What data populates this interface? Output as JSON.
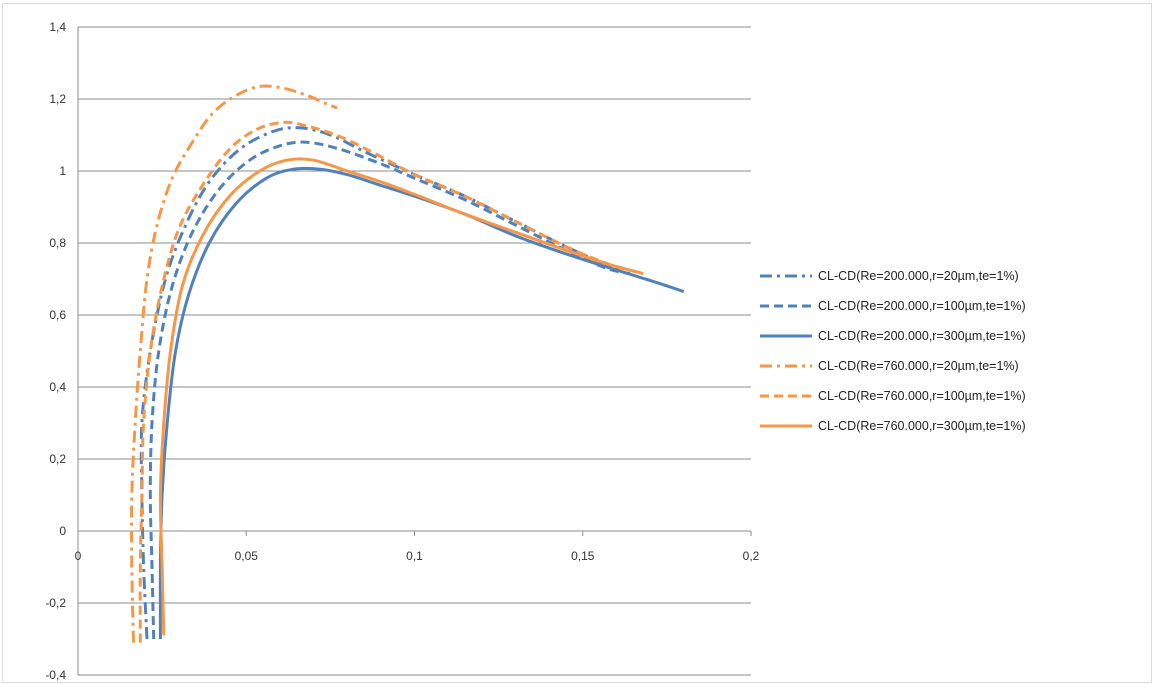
{
  "chart_data": {
    "type": "line",
    "title": "",
    "xlabel": "",
    "ylabel": "",
    "xlim": [
      0,
      0.2
    ],
    "ylim": [
      -0.4,
      1.4
    ],
    "x_ticks": [
      0,
      0.05,
      0.1,
      0.15,
      0.2
    ],
    "x_tick_labels": [
      "0",
      "0,05",
      "0,1",
      "0,15",
      "0,2"
    ],
    "y_ticks": [
      -0.4,
      -0.2,
      0,
      0.2,
      0.4,
      0.6,
      0.8,
      1,
      1.2,
      1.4
    ],
    "y_tick_labels": [
      "-0,4",
      "-0,2",
      "0",
      "0,2",
      "0,4",
      "0,6",
      "0,8",
      "1",
      "1,2",
      "1,4"
    ],
    "grid": "horizontal",
    "legend_position": "right",
    "series": [
      {
        "name": "CL-CD(Re=200.000,r=20µm,te=1%)",
        "color": "#4f81bd",
        "dash": "dashdot",
        "points": [
          [
            0.0205,
            -0.3
          ],
          [
            0.0195,
            -0.1
          ],
          [
            0.019,
            0.1
          ],
          [
            0.019,
            0.3
          ],
          [
            0.0215,
            0.5
          ],
          [
            0.026,
            0.7
          ],
          [
            0.032,
            0.85
          ],
          [
            0.039,
            0.97
          ],
          [
            0.048,
            1.06
          ],
          [
            0.058,
            1.11
          ],
          [
            0.066,
            1.12
          ],
          [
            0.075,
            1.1
          ],
          [
            0.086,
            1.05
          ],
          [
            0.1,
            0.99
          ],
          [
            0.115,
            0.93
          ],
          [
            0.13,
            0.86
          ],
          [
            0.145,
            0.79
          ],
          [
            0.157,
            0.74
          ],
          [
            0.162,
            0.73
          ]
        ]
      },
      {
        "name": "CL-CD(Re=200.000,r=100µm,te=1%)",
        "color": "#4f81bd",
        "dash": "dashed",
        "points": [
          [
            0.0225,
            -0.3
          ],
          [
            0.022,
            -0.1
          ],
          [
            0.0215,
            0.1
          ],
          [
            0.022,
            0.3
          ],
          [
            0.024,
            0.5
          ],
          [
            0.028,
            0.68
          ],
          [
            0.034,
            0.83
          ],
          [
            0.042,
            0.95
          ],
          [
            0.051,
            1.03
          ],
          [
            0.06,
            1.07
          ],
          [
            0.068,
            1.08
          ],
          [
            0.078,
            1.06
          ],
          [
            0.09,
            1.02
          ],
          [
            0.1,
            0.98
          ],
          [
            0.115,
            0.92
          ],
          [
            0.13,
            0.85
          ],
          [
            0.145,
            0.78
          ],
          [
            0.157,
            0.73
          ],
          [
            0.164,
            0.715
          ]
        ]
      },
      {
        "name": "CL-CD(Re=200.000,r=300µm,te=1%)",
        "color": "#4f81bd",
        "dash": "solid",
        "points": [
          [
            0.0245,
            -0.3
          ],
          [
            0.0245,
            -0.1
          ],
          [
            0.025,
            0.1
          ],
          [
            0.0265,
            0.3
          ],
          [
            0.029,
            0.5
          ],
          [
            0.033,
            0.66
          ],
          [
            0.039,
            0.8
          ],
          [
            0.047,
            0.91
          ],
          [
            0.056,
            0.98
          ],
          [
            0.064,
            1.005
          ],
          [
            0.072,
            1.005
          ],
          [
            0.08,
            0.99
          ],
          [
            0.09,
            0.96
          ],
          [
            0.1,
            0.93
          ],
          [
            0.115,
            0.88
          ],
          [
            0.13,
            0.82
          ],
          [
            0.145,
            0.77
          ],
          [
            0.16,
            0.725
          ],
          [
            0.172,
            0.69
          ],
          [
            0.18,
            0.665
          ]
        ]
      },
      {
        "name": "CL-CD(Re=760.000,r=20µm,te=1%)",
        "color": "#f79646",
        "dash": "dashdot",
        "points": [
          [
            0.0165,
            -0.31
          ],
          [
            0.016,
            -0.1
          ],
          [
            0.016,
            0.1
          ],
          [
            0.017,
            0.3
          ],
          [
            0.0185,
            0.5
          ],
          [
            0.0205,
            0.7
          ],
          [
            0.0235,
            0.85
          ],
          [
            0.028,
            0.98
          ],
          [
            0.034,
            1.08
          ],
          [
            0.04,
            1.16
          ],
          [
            0.047,
            1.21
          ],
          [
            0.054,
            1.235
          ],
          [
            0.061,
            1.23
          ],
          [
            0.068,
            1.21
          ],
          [
            0.073,
            1.19
          ],
          [
            0.077,
            1.175
          ]
        ]
      },
      {
        "name": "CL-CD(Re=760.000,r=100µm,te=1%)",
        "color": "#f79646",
        "dash": "dashed",
        "points": [
          [
            0.0185,
            -0.31
          ],
          [
            0.0185,
            -0.1
          ],
          [
            0.019,
            0.1
          ],
          [
            0.0195,
            0.3
          ],
          [
            0.0215,
            0.5
          ],
          [
            0.025,
            0.68
          ],
          [
            0.03,
            0.84
          ],
          [
            0.037,
            0.96
          ],
          [
            0.045,
            1.06
          ],
          [
            0.053,
            1.115
          ],
          [
            0.061,
            1.135
          ],
          [
            0.068,
            1.125
          ],
          [
            0.078,
            1.095
          ],
          [
            0.09,
            1.04
          ],
          [
            0.1,
            0.99
          ],
          [
            0.115,
            0.93
          ],
          [
            0.13,
            0.86
          ],
          [
            0.145,
            0.79
          ],
          [
            0.158,
            0.74
          ],
          [
            0.166,
            0.72
          ]
        ]
      },
      {
        "name": "CL-CD(Re=760.000,r=300µm,te=1%)",
        "color": "#f79646",
        "dash": "solid",
        "points": [
          [
            0.0255,
            -0.29
          ],
          [
            0.025,
            -0.1
          ],
          [
            0.0245,
            0.1
          ],
          [
            0.0255,
            0.3
          ],
          [
            0.0275,
            0.5
          ],
          [
            0.031,
            0.68
          ],
          [
            0.037,
            0.82
          ],
          [
            0.045,
            0.93
          ],
          [
            0.054,
            1.0
          ],
          [
            0.062,
            1.03
          ],
          [
            0.07,
            1.03
          ],
          [
            0.08,
            1.0
          ],
          [
            0.09,
            0.97
          ],
          [
            0.1,
            0.935
          ],
          [
            0.115,
            0.88
          ],
          [
            0.13,
            0.83
          ],
          [
            0.145,
            0.78
          ],
          [
            0.158,
            0.74
          ],
          [
            0.168,
            0.715
          ]
        ]
      }
    ]
  }
}
